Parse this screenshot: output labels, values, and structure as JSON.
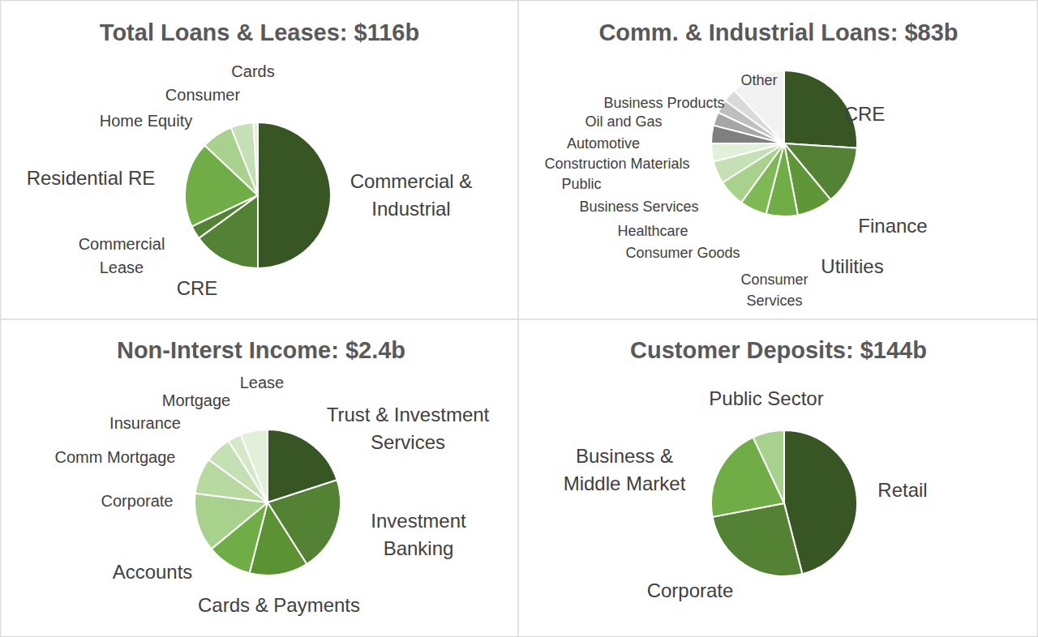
{
  "chart_data": [
    {
      "type": "pie",
      "title": "Total Loans & Leases: $116b",
      "categories": [
        "Commercial & Industrial",
        "CRE",
        "Commercial Lease",
        "Residential RE",
        "Home Equity",
        "Consumer",
        "Cards"
      ],
      "values": [
        50,
        15,
        3,
        19,
        7,
        5,
        1
      ],
      "colors": [
        "#375623",
        "#548235",
        "#548235",
        "#70ad47",
        "#a9d18e",
        "#c5e0b4",
        "#e2f0d9"
      ]
    },
    {
      "type": "pie",
      "title": "Comm. & Industrial Loans: $83b",
      "categories": [
        "CRE",
        "Finance",
        "Utilities",
        "Consumer Services",
        "Consumer Goods",
        "Healthcare",
        "Business Services",
        "Public",
        "Construction Materials",
        "Automotive",
        "Oil and Gas",
        "Business Products",
        "Other"
      ],
      "values": [
        26,
        13,
        8,
        7,
        6,
        6,
        5,
        4,
        4,
        3,
        3,
        3,
        12
      ],
      "colors": [
        "#375623",
        "#548235",
        "#5f9637",
        "#70ad47",
        "#7fb955",
        "#a9d18e",
        "#c5e0b4",
        "#e2f0d9",
        "#7f7f7f",
        "#a6a6a6",
        "#bfbfbf",
        "#d9d9d9",
        "#f2f2f2"
      ]
    },
    {
      "type": "pie",
      "title": "Non-Interst Income: $2.4b",
      "categories": [
        "Trust & Investment Services",
        "Investment Banking",
        "Cards & Payments",
        "Accounts",
        "Corporate",
        "Comm Mortgage",
        "Insurance",
        "Mortgage",
        "Lease"
      ],
      "values": [
        20,
        21,
        13,
        10,
        13,
        8,
        6,
        3,
        6
      ],
      "colors": [
        "#375623",
        "#548235",
        "#5a9234",
        "#70ad47",
        "#a9d18e",
        "#b8d9a0",
        "#c5e0b4",
        "#d5e8c8",
        "#e2f0d9"
      ]
    },
    {
      "type": "pie",
      "title": "Customer Deposits: $144b",
      "categories": [
        "Retail",
        "Corporate",
        "Business & Middle Market",
        "Public Sector"
      ],
      "values": [
        46,
        26,
        21,
        7
      ],
      "colors": [
        "#375623",
        "#548235",
        "#70ad47",
        "#a9d18e"
      ]
    }
  ]
}
